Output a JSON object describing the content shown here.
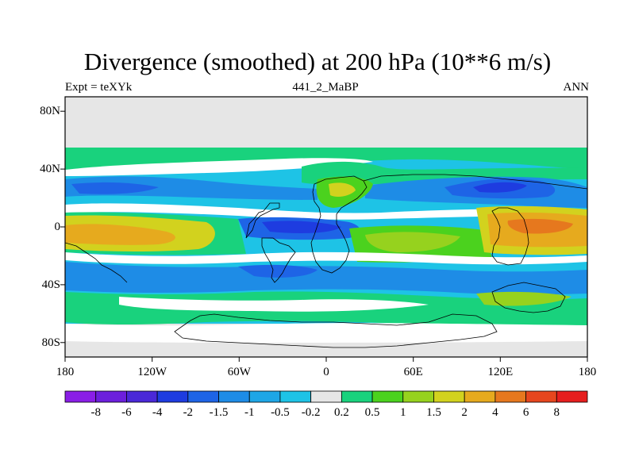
{
  "title": "Divergence (smoothed) at 200 hPa (10**6 m/s)",
  "subtitle_left": "Expt = teXYk",
  "subtitle_center": "441_2_MaBP",
  "subtitle_right": "ANN",
  "axes": {
    "lat_labels": [
      "80N",
      "40N",
      "0",
      "40S",
      "80S"
    ],
    "lon_labels": [
      "180",
      "120W",
      "60W",
      "0",
      "60E",
      "120E",
      "180"
    ],
    "lat_range": [
      -90,
      90
    ],
    "lon_range": [
      -180,
      180
    ]
  },
  "colorbar": {
    "labels": [
      "-8",
      "-6",
      "-4",
      "-2",
      "-1.5",
      "-1",
      "-0.5",
      "-0.2",
      "0.2",
      "0.5",
      "1",
      "1.5",
      "2",
      "4",
      "6",
      "8"
    ],
    "colors": [
      "#8a1ee6",
      "#6c1fdc",
      "#4a28d8",
      "#1e3ce0",
      "#1e64e6",
      "#1e8ce6",
      "#1ea6e6",
      "#1ec3e6",
      "#e6e6e6",
      "#19d27d",
      "#4bd21e",
      "#96d21e",
      "#d2d21e",
      "#e6aa1e",
      "#e6781e",
      "#e6461e",
      "#e61e1e"
    ]
  },
  "field_colors": {
    "missing": "#e6e6e6",
    "near_zero": "#ffffff"
  }
}
